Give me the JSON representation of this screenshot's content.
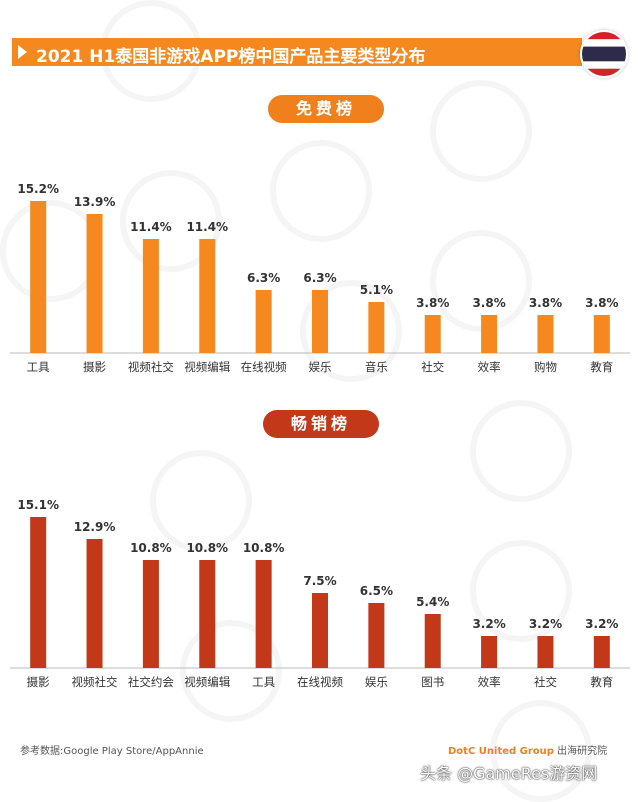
{
  "title": "2021 H1泰国非游戏APP榜中国产品主要类型分布",
  "flag": "thailand-flag",
  "colors": {
    "free": "#f5891f",
    "grossing": "#c23818",
    "axis": "#bbbbbb"
  },
  "chart_data": [
    {
      "type": "bar",
      "title": "免费榜",
      "categories": [
        "工具",
        "摄影",
        "视频社交",
        "视频编辑",
        "在线视频",
        "娱乐",
        "音乐",
        "社交",
        "效率",
        "购物",
        "教育"
      ],
      "values": [
        15.2,
        13.9,
        11.4,
        11.4,
        6.3,
        6.3,
        5.1,
        3.8,
        3.8,
        3.8,
        3.8
      ],
      "labels": [
        "15.2%",
        "13.9%",
        "11.4%",
        "11.4%",
        "6.3%",
        "6.3%",
        "5.1%",
        "3.8%",
        "3.8%",
        "3.8%",
        "3.8%"
      ],
      "unit": "%",
      "ylim": [
        0,
        16
      ],
      "grid": false
    },
    {
      "type": "bar",
      "title": "畅销榜",
      "categories": [
        "摄影",
        "视频社交",
        "社交约会",
        "视频编辑",
        "工具",
        "在线视频",
        "娱乐",
        "图书",
        "效率",
        "社交",
        "教育"
      ],
      "values": [
        15.1,
        12.9,
        10.8,
        10.8,
        10.8,
        7.5,
        6.5,
        5.4,
        3.2,
        3.2,
        3.2
      ],
      "labels": [
        "15.1%",
        "12.9%",
        "10.8%",
        "10.8%",
        "10.8%",
        "7.5%",
        "6.5%",
        "5.4%",
        "3.2%",
        "3.2%",
        "3.2%"
      ],
      "unit": "%",
      "ylim": [
        0,
        16
      ],
      "grid": false
    }
  ],
  "footer": {
    "source": "参考数据:Google Play Store/AppAnnie",
    "brand": "DotC United Group",
    "brand_suffix": " 出海研究院"
  },
  "watermark": "头条 @GameRes游资网"
}
